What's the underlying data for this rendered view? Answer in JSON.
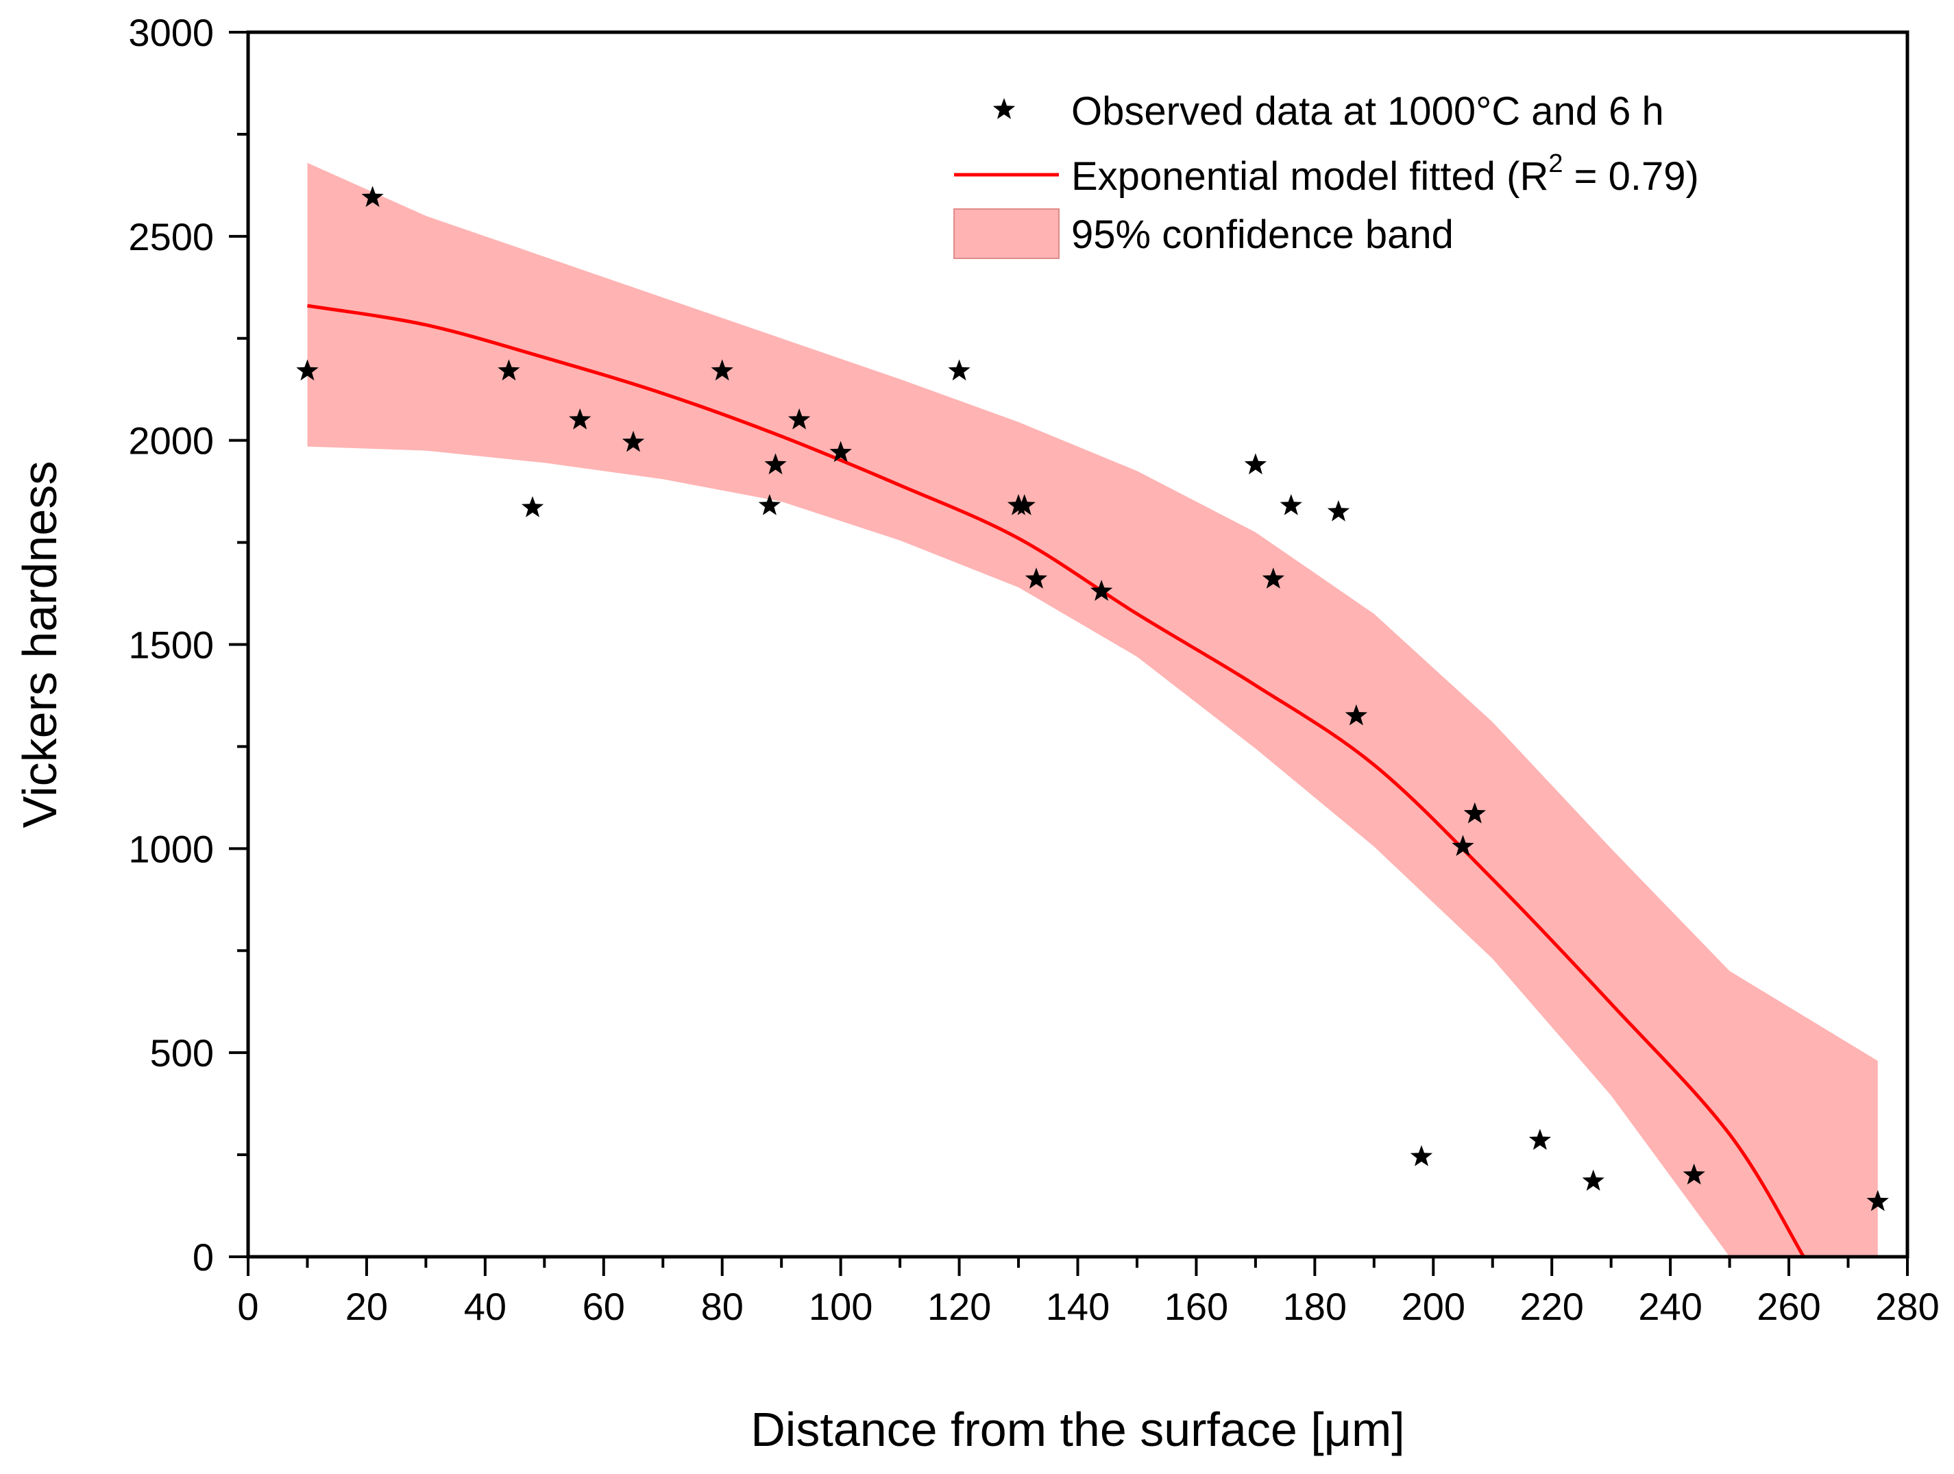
{
  "chart_data": {
    "type": "scatter",
    "title": "",
    "xlabel": "Distance from the surface [μm]",
    "ylabel": "Vickers hardness",
    "xlim": [
      0,
      280
    ],
    "ylim": [
      0,
      3000
    ],
    "x_ticks": [
      0,
      20,
      40,
      60,
      80,
      100,
      120,
      140,
      160,
      180,
      200,
      220,
      240,
      260,
      280
    ],
    "y_ticks": [
      0,
      500,
      1000,
      1500,
      2000,
      2500,
      3000
    ],
    "grid": false,
    "legend_position": "top-right",
    "legend": {
      "observed": "Observed data at 1000°C and 6 h",
      "model_prefix": "Exponential model fitted (R",
      "model_sup": "2",
      "model_suffix": " = 0.79)",
      "band": "95% confidence band"
    },
    "colors": {
      "points": "#000000",
      "model_line": "#ff0000",
      "band_fill": "#ffb3b3",
      "band_edge": "#e08a8a"
    },
    "series": [
      {
        "name": "Observed data at 1000°C and 6 h",
        "kind": "scatter",
        "marker": "star",
        "x": [
          10,
          21,
          44,
          48,
          56,
          65,
          80,
          88,
          89,
          93,
          100,
          120,
          130,
          131,
          133,
          144,
          170,
          173,
          176,
          184,
          187,
          198,
          205,
          207,
          218,
          227,
          244,
          275
        ],
        "y": [
          2170,
          2595,
          2170,
          1835,
          2050,
          1995,
          2170,
          1840,
          1940,
          2050,
          1970,
          2170,
          1840,
          1840,
          1660,
          1630,
          1940,
          1660,
          1840,
          1825,
          1325,
          245,
          1005,
          1085,
          285,
          185,
          200,
          135
        ]
      },
      {
        "name": "Exponential model fitted (R2 = 0.79)",
        "kind": "line",
        "x": [
          10,
          30,
          50,
          70,
          90,
          110,
          130,
          150,
          170,
          190,
          210,
          230,
          250,
          262.5
        ],
        "y": [
          2330,
          2283,
          2203,
          2115,
          2010,
          1890,
          1760,
          1575,
          1400,
          1205,
          925,
          620,
          300,
          0
        ]
      },
      {
        "name": "95% confidence band",
        "kind": "band",
        "x": [
          10,
          30,
          50,
          70,
          90,
          110,
          130,
          150,
          170,
          190,
          210,
          230,
          250,
          275
        ],
        "upper": [
          2680,
          2550,
          2450,
          2350,
          2250,
          2150,
          2045,
          1925,
          1775,
          1575,
          1310,
          1000,
          700,
          480
        ],
        "lower": [
          1985,
          1975,
          1945,
          1905,
          1850,
          1755,
          1640,
          1470,
          1245,
          1005,
          730,
          395,
          0,
          0
        ]
      }
    ]
  }
}
